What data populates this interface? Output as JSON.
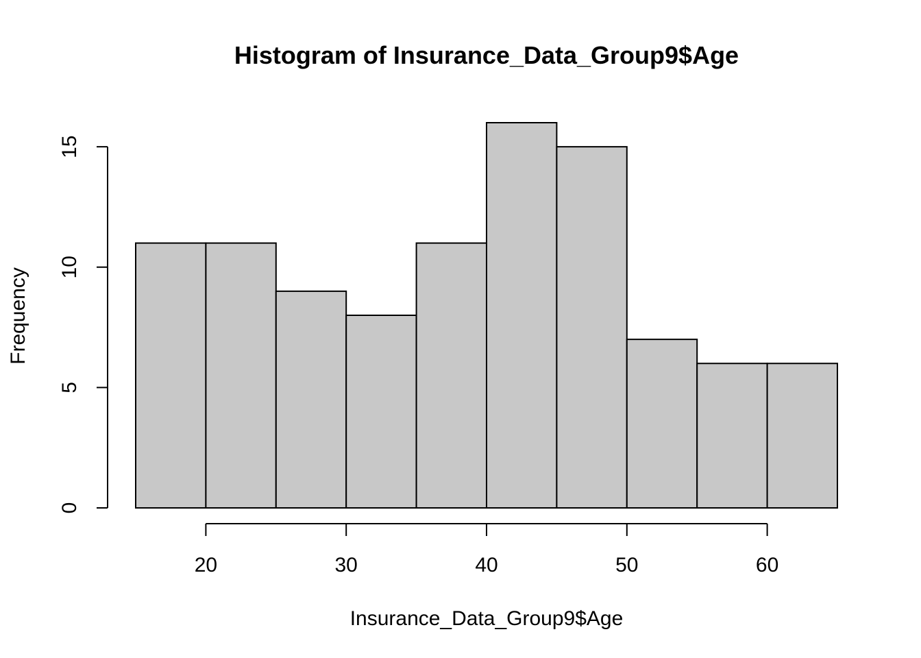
{
  "chart_data": {
    "type": "bar",
    "title": "Histogram of Insurance_Data_Group9$Age",
    "xlabel": "Insurance_Data_Group9$Age",
    "ylabel": "Frequency",
    "bins": [
      {
        "start": 15,
        "end": 20,
        "count": 11
      },
      {
        "start": 20,
        "end": 25,
        "count": 11
      },
      {
        "start": 25,
        "end": 30,
        "count": 9
      },
      {
        "start": 30,
        "end": 35,
        "count": 8
      },
      {
        "start": 35,
        "end": 40,
        "count": 11
      },
      {
        "start": 40,
        "end": 45,
        "count": 16
      },
      {
        "start": 45,
        "end": 50,
        "count": 15
      },
      {
        "start": 50,
        "end": 55,
        "count": 7
      },
      {
        "start": 55,
        "end": 60,
        "count": 6
      },
      {
        "start": 60,
        "end": 65,
        "count": 6
      }
    ],
    "xlim": [
      15,
      65
    ],
    "ylim": [
      0,
      16
    ],
    "x_ticks": [
      "20",
      "30",
      "40",
      "50",
      "60"
    ],
    "y_ticks": [
      "0",
      "5",
      "10",
      "15"
    ],
    "bar_color": "#c8c8c8",
    "grid": false,
    "legend": "none"
  }
}
